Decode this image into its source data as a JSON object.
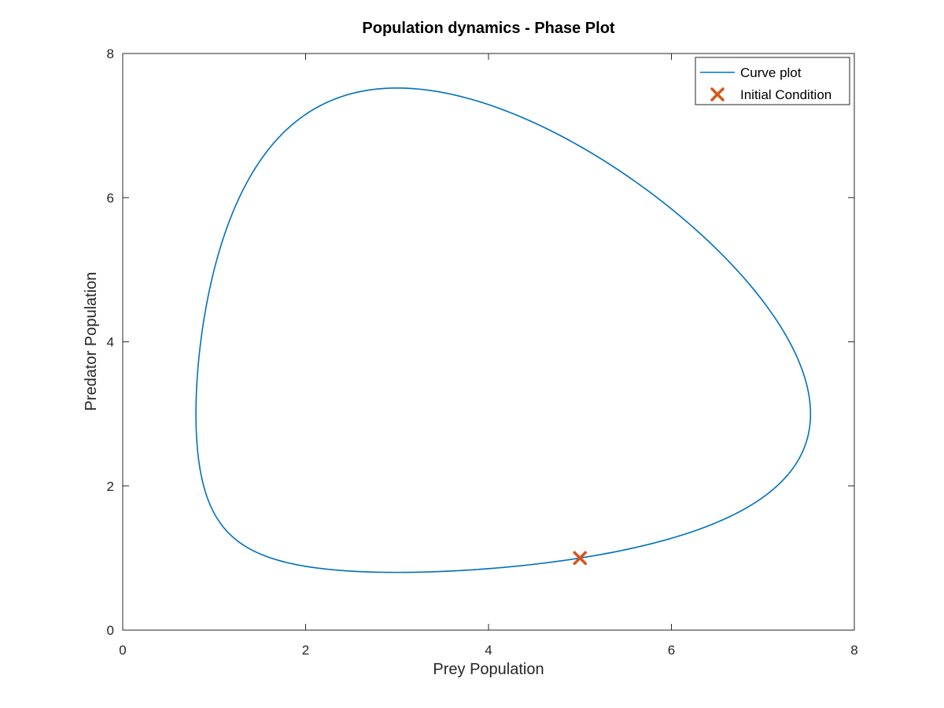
{
  "chart_data": {
    "type": "line",
    "title": "Population dynamics - Phase Plot",
    "xlabel": "Prey Population",
    "ylabel": "Predator Population",
    "xlim": [
      0,
      8
    ],
    "ylim": [
      0,
      8
    ],
    "xticks": [
      0,
      2,
      4,
      6,
      8
    ],
    "yticks": [
      0,
      2,
      4,
      6,
      8
    ],
    "xtick_labels": [
      "0",
      "2",
      "4",
      "6",
      "8"
    ],
    "ytick_labels": [
      "0",
      "2",
      "4",
      "6",
      "8"
    ],
    "grid": false,
    "legend_position": "top-right",
    "model": {
      "prey_growth_rate": 1,
      "predation_rate": 0.3333,
      "predator_death_rate": 1,
      "predator_efficiency": 0.3333
    },
    "series": [
      {
        "name": "Curve plot",
        "kind": "line",
        "color": "#0072BD",
        "x": [
          5.0,
          5.5,
          6.0,
          6.5,
          7.0,
          7.3,
          7.5,
          7.42,
          7.2,
          6.8,
          6.3,
          5.7,
          5.0,
          4.2,
          3.4,
          3.0,
          2.6,
          2.0,
          1.5,
          1.1,
          0.9,
          0.82,
          0.85,
          1.0,
          1.3,
          1.8,
          2.5,
          3.0,
          3.5,
          4.0,
          4.5,
          5.0
        ],
        "y": [
          1.0,
          1.14,
          1.3,
          1.5,
          1.86,
          2.3,
          3.0,
          3.7,
          4.3,
          5.0,
          5.55,
          6.2,
          6.7,
          7.1,
          7.44,
          7.52,
          7.5,
          7.2,
          6.6,
          5.5,
          4.3,
          3.0,
          2.2,
          1.6,
          1.2,
          0.95,
          0.84,
          0.81,
          0.82,
          0.86,
          0.92,
          1.0
        ]
      },
      {
        "name": "Initial Condition",
        "kind": "marker",
        "marker": "x",
        "color": "#D95319",
        "x": [
          5
        ],
        "y": [
          1
        ]
      }
    ]
  }
}
